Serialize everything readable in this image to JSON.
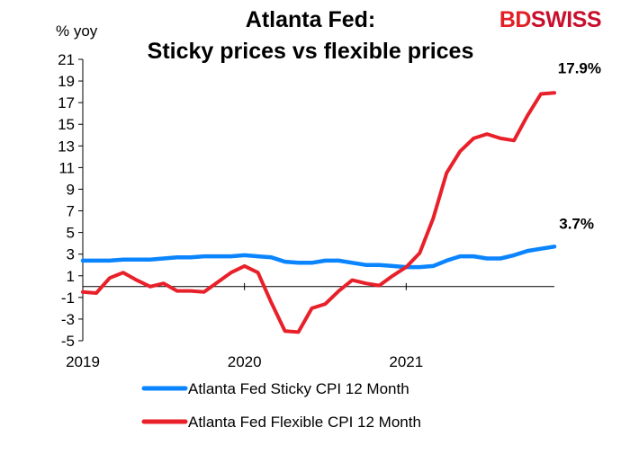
{
  "brand": {
    "part1": "BD",
    "part2": "SWISS",
    "part1_color": "#e31e24",
    "part2_color": "#c8102e"
  },
  "chart_data": {
    "type": "line",
    "title_lines": [
      "Atlanta Fed:",
      "Sticky prices vs flexible prices"
    ],
    "ylabel": "% yoy",
    "ylim": [
      -5,
      21
    ],
    "yticks": [
      21,
      19,
      17,
      15,
      13,
      11,
      9,
      7,
      5,
      3,
      1,
      -1,
      -3,
      -5
    ],
    "xlim": [
      0,
      35
    ],
    "xticks": [
      {
        "label": "2019",
        "index": 0
      },
      {
        "label": "2020",
        "index": 12
      },
      {
        "label": "2021",
        "index": 24
      }
    ],
    "grid": false,
    "legend_position": "bottom",
    "series": [
      {
        "name": "Atlanta Fed Sticky CPI 12 Month",
        "color": "#0a84ff",
        "end_label": "3.7%",
        "values": [
          2.4,
          2.4,
          2.4,
          2.5,
          2.5,
          2.5,
          2.6,
          2.7,
          2.7,
          2.8,
          2.8,
          2.8,
          2.9,
          2.8,
          2.7,
          2.3,
          2.2,
          2.2,
          2.4,
          2.4,
          2.2,
          2.0,
          2.0,
          1.9,
          1.8,
          1.8,
          1.9,
          2.4,
          2.8,
          2.8,
          2.6,
          2.6,
          2.9,
          3.3,
          3.5,
          3.7
        ]
      },
      {
        "name": "Atlanta Fed Flexible CPI 12 Month",
        "color": "#e8202a",
        "end_label": "17.9%",
        "values": [
          -0.5,
          -0.6,
          0.8,
          1.3,
          0.6,
          0.0,
          0.3,
          -0.4,
          -0.4,
          -0.5,
          0.4,
          1.3,
          1.9,
          1.3,
          -1.5,
          -4.1,
          -4.2,
          -2.0,
          -1.6,
          -0.4,
          0.6,
          0.3,
          0.1,
          1.0,
          1.8,
          3.1,
          6.3,
          10.5,
          12.5,
          13.7,
          14.1,
          13.7,
          13.5,
          15.8,
          17.8,
          17.9
        ]
      }
    ]
  }
}
